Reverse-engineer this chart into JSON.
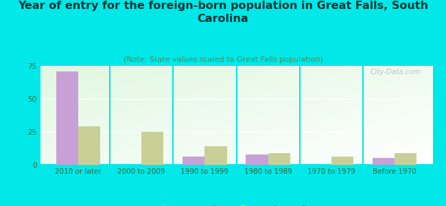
{
  "title": "Year of entry for the foreign-born population in Great Falls, South\nCarolina",
  "subtitle": "(Note: State values scaled to Great Falls population)",
  "categories": [
    "2010 or later",
    "2000 to 2009",
    "1990 to 1999",
    "1980 to 1989",
    "1970 to 1979",
    "Before 1970"
  ],
  "great_falls_values": [
    71,
    0,
    6,
    8,
    0,
    5
  ],
  "south_carolina_values": [
    29,
    25,
    14,
    9,
    6,
    9
  ],
  "great_falls_color": "#c8a0d8",
  "south_carolina_color": "#c8d098",
  "background_color": "#00e8e8",
  "ylim": [
    0,
    75
  ],
  "yticks": [
    0,
    25,
    50,
    75
  ],
  "bar_width": 0.35,
  "title_fontsize": 11.5,
  "subtitle_fontsize": 8,
  "tick_fontsize": 7.5,
  "legend_fontsize": 9,
  "watermark": "City-Data.com"
}
